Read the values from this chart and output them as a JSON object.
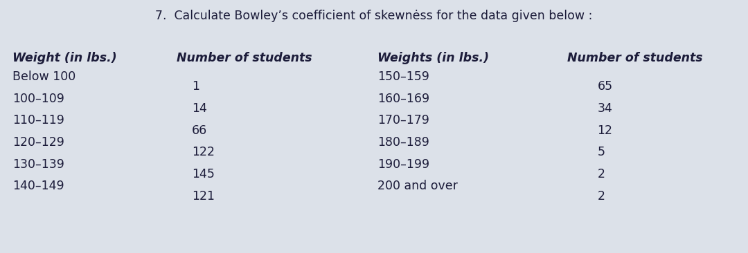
{
  "title": "7.  Calculate Bowley’s coefficient of skewnėss for the data given below :",
  "title_fontsize": 12.5,
  "col1_header": "Weight (in lbs.)",
  "col2_header": "Number of students",
  "col3_header": "Weights (in lbs.)",
  "col4_header": "Number of students",
  "col1_data": [
    "Below 100",
    "100–109",
    "110–119",
    "120–129",
    "130–139",
    "140–149"
  ],
  "col2_data": [
    "1",
    "14",
    "66",
    "122",
    "145",
    "121"
  ],
  "col3_data": [
    "150–159",
    "160–169",
    "170–179",
    "180–189",
    "190–199",
    "200 and over"
  ],
  "col4_data": [
    "65",
    "34",
    "12",
    "5",
    "2",
    "2"
  ],
  "bg_color": "#dce1e9",
  "text_color": "#1c1c3a",
  "header_fontsize": 12.5,
  "data_fontsize": 12.5,
  "font_family": "DejaVu Sans"
}
